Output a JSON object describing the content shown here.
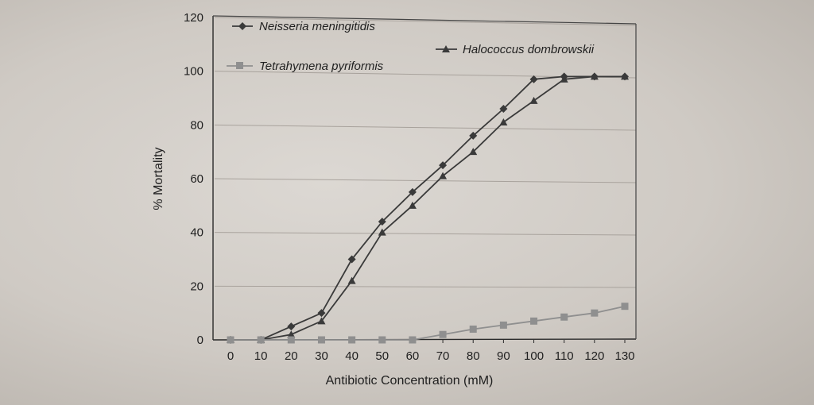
{
  "chart_data": {
    "type": "line",
    "title": "",
    "xlabel": "Antibiotic Concentration (mM)",
    "ylabel": "% Mortality",
    "x": [
      0,
      10,
      20,
      30,
      40,
      50,
      60,
      70,
      80,
      90,
      100,
      110,
      120,
      130
    ],
    "x_tick_labels": [
      "0",
      "10",
      "20",
      "30",
      "40",
      "50",
      "60",
      "70",
      "80",
      "90",
      "100",
      "110",
      "120",
      "130"
    ],
    "y_tick_labels": [
      "0",
      "20",
      "40",
      "60",
      "80",
      "100",
      "120"
    ],
    "xlim": [
      0,
      130
    ],
    "ylim": [
      0,
      120
    ],
    "grid": "horizontal",
    "legend_position": "top",
    "series": [
      {
        "name": "Neisseria meningitidis",
        "marker": "diamond",
        "color": "#3a3a3a",
        "values": [
          0,
          0,
          5,
          10,
          30,
          44,
          55,
          65,
          76,
          86,
          97,
          98,
          98,
          98
        ]
      },
      {
        "name": "Halococcus dombrowskii",
        "marker": "triangle",
        "color": "#3a3a3a",
        "values": [
          0,
          0,
          2,
          7,
          22,
          40,
          50,
          61,
          70,
          81,
          89,
          97,
          98,
          98
        ]
      },
      {
        "name": "Tetrahymena pyriformis",
        "marker": "square",
        "color": "#8f8f8f",
        "values": [
          0,
          0,
          0,
          0,
          0,
          0,
          0,
          2,
          4,
          5.5,
          7,
          8.5,
          10,
          12.5
        ]
      }
    ]
  }
}
